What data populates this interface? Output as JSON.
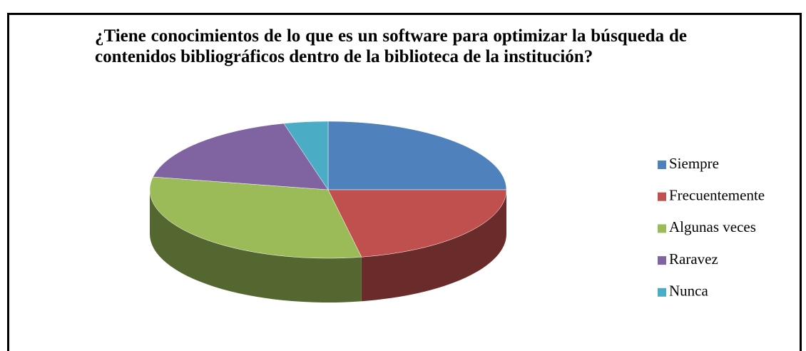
{
  "chart_data": {
    "type": "pie",
    "title": "¿Tiene conocimientos de lo que es un software para optimizar la búsqueda de contenidos bibliográficos dentro de la biblioteca de la institución?",
    "categories": [
      "Siempre",
      "Frecuentemente",
      "Algunas veces",
      "Raravez",
      "Nunca"
    ],
    "values": [
      25,
      22,
      31,
      18,
      4
    ],
    "colors": [
      "#4f81bd",
      "#c0504d",
      "#9bbb59",
      "#8064a2",
      "#4bacc6"
    ],
    "legend": "right"
  }
}
